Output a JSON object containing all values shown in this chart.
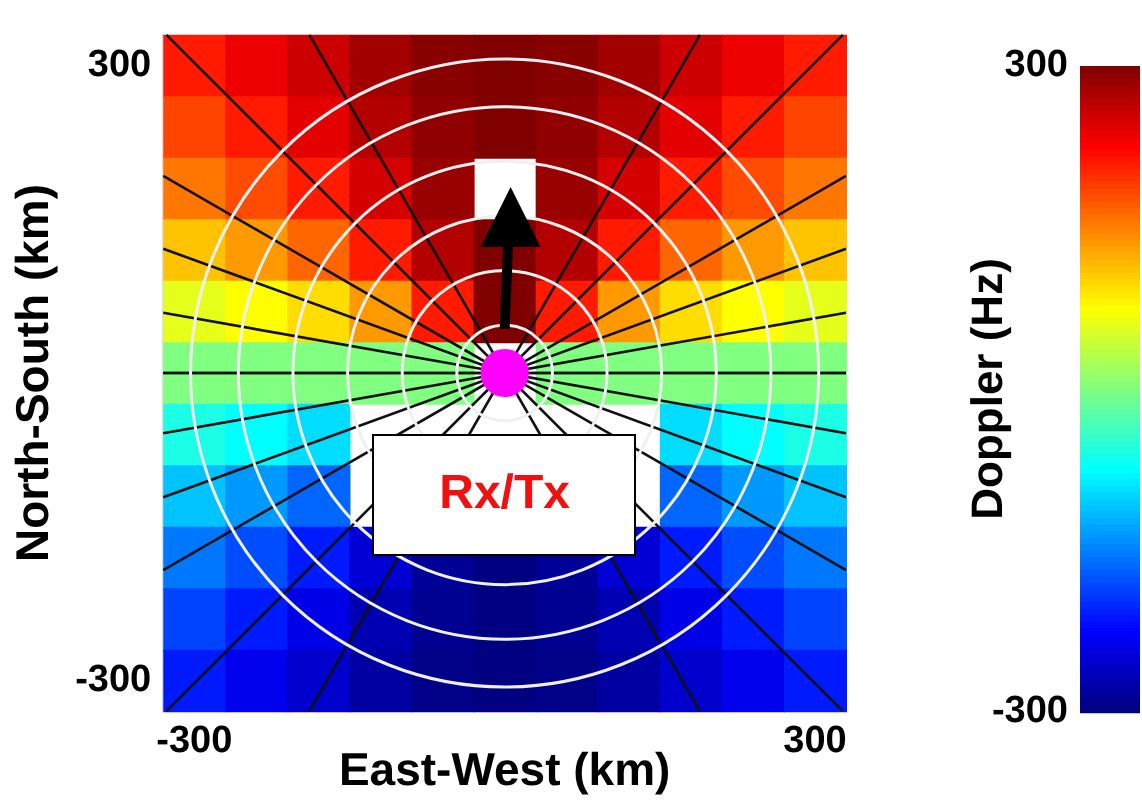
{
  "chart_data": {
    "type": "heatmap",
    "xlabel": "East-West (km)",
    "ylabel": "North-South (km)",
    "clabel": "Doppler (Hz)",
    "categories": [
      "-300",
      null,
      null,
      null,
      null,
      null,
      null,
      null,
      null,
      null,
      "300"
    ],
    "y_categories": [
      "300",
      null,
      null,
      null,
      null,
      null,
      null,
      null,
      null,
      null,
      "-300"
    ],
    "clim": [
      -300,
      300
    ],
    "cticks": [
      -300,
      300
    ],
    "cells": [
      [
        210,
        235,
        255,
        280,
        295,
        300,
        295,
        280,
        255,
        235,
        210
      ],
      [
        185,
        210,
        240,
        270,
        290,
        300,
        290,
        270,
        240,
        210,
        185
      ],
      [
        155,
        180,
        210,
        250,
        285,
        null,
        285,
        250,
        210,
        180,
        155
      ],
      [
        110,
        135,
        165,
        210,
        270,
        300,
        270,
        210,
        165,
        135,
        110
      ],
      [
        60,
        75,
        95,
        135,
        210,
        300,
        210,
        135,
        95,
        75,
        60
      ],
      [
        0,
        0,
        0,
        0,
        0,
        null,
        0,
        0,
        0,
        0,
        0
      ],
      [
        -60,
        -75,
        -95,
        null,
        null,
        null,
        null,
        null,
        -95,
        -75,
        -60
      ],
      [
        -110,
        -135,
        -165,
        null,
        null,
        null,
        null,
        null,
        -165,
        -135,
        -110
      ],
      [
        -155,
        -180,
        -210,
        -250,
        -285,
        -300,
        -285,
        -250,
        -210,
        -180,
        -155
      ],
      [
        -185,
        -210,
        -240,
        -270,
        -290,
        -300,
        -290,
        -270,
        -240,
        -210,
        -185
      ],
      [
        -210,
        -235,
        -255,
        -280,
        -295,
        -300,
        -295,
        -280,
        -255,
        -235,
        -210
      ]
    ],
    "annotations": [
      "Rx/Tx"
    ]
  }
}
